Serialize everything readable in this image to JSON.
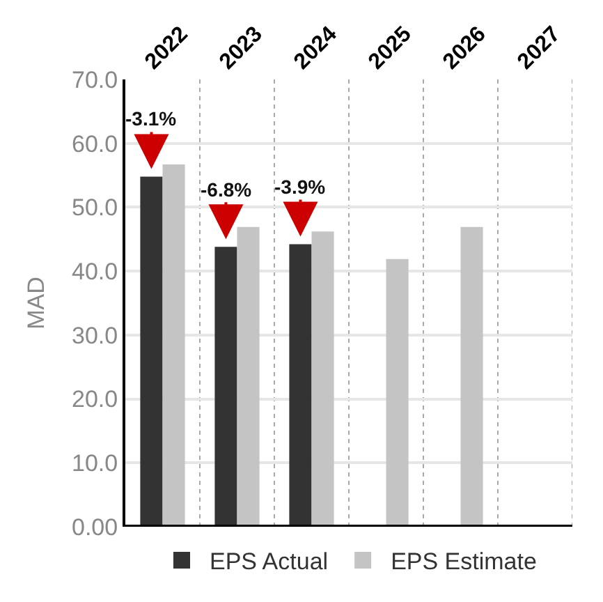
{
  "chart_data": {
    "type": "bar",
    "ylabel": "MAD",
    "categories": [
      "2022",
      "2023",
      "2024",
      "2025",
      "2026",
      "2027"
    ],
    "series": [
      {
        "name": "EPS Actual",
        "color": "#333333",
        "values": [
          54.8,
          43.8,
          44.2,
          null,
          null,
          null
        ]
      },
      {
        "name": "EPS Estimate",
        "color": "#c4c4c4",
        "values": [
          56.7,
          46.9,
          46.2,
          41.9,
          46.9,
          null
        ]
      }
    ],
    "annotations": [
      {
        "text": "-3.1%",
        "x": "2022",
        "y": 54.8
      },
      {
        "text": "-6.8%",
        "x": "2023",
        "y": 43.8
      },
      {
        "text": "-3.9%",
        "x": "2024",
        "y": 44.2
      }
    ],
    "ylim": [
      0,
      70
    ],
    "yticks": [
      {
        "value": 0,
        "label": "0.00"
      },
      {
        "value": 10,
        "label": "10.0"
      },
      {
        "value": 20,
        "label": "20.0"
      },
      {
        "value": 30,
        "label": "30.0"
      },
      {
        "value": 40,
        "label": "40.0"
      },
      {
        "value": 50,
        "label": "50.0"
      },
      {
        "value": 60,
        "label": "60.0"
      },
      {
        "value": 70,
        "label": "70.0"
      }
    ],
    "grid": true,
    "legend": "bottom"
  }
}
